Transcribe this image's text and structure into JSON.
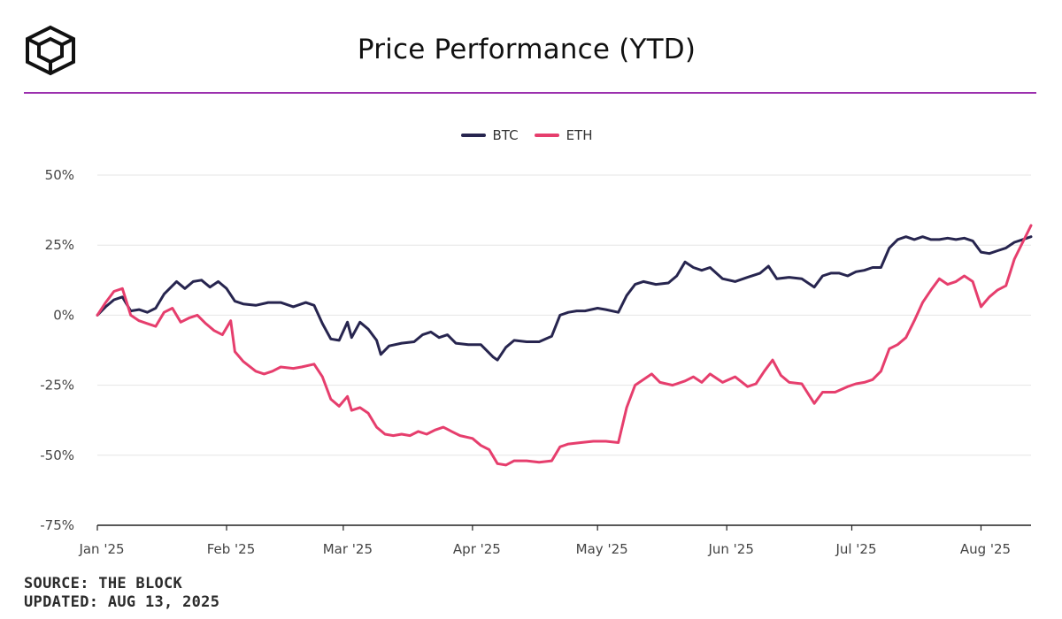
{
  "header": {
    "logo_icon": "the-block-cube-logo",
    "title": "Price Performance (YTD)",
    "accent_color": "#9b2fae"
  },
  "footer": {
    "source": "SOURCE: THE BLOCK",
    "updated": "UPDATED: AUG 13, 2025"
  },
  "chart_data": {
    "type": "line",
    "title": "Price Performance (YTD)",
    "xlabel": "",
    "ylabel": "",
    "x_ticks": [
      "Jan '25",
      "Feb '25",
      "Mar '25",
      "Apr '25",
      "May '25",
      "Jun '25",
      "Jul '25",
      "Aug '25"
    ],
    "y_ticks": [
      "50%",
      "25%",
      "0%",
      "-25%",
      "-50%",
      "-75%"
    ],
    "ylim": [
      -75,
      50
    ],
    "x_range": [
      "2025-01-01",
      "2025-08-13"
    ],
    "grid": true,
    "legend_position": "top-center",
    "series": [
      {
        "name": "BTC",
        "color": "#27254f",
        "points": [
          [
            "2025-01-01",
            0
          ],
          [
            "2025-01-03",
            3
          ],
          [
            "2025-01-05",
            5.5
          ],
          [
            "2025-01-07",
            6.5
          ],
          [
            "2025-01-09",
            1.5
          ],
          [
            "2025-01-11",
            2
          ],
          [
            "2025-01-13",
            1
          ],
          [
            "2025-01-15",
            2.5
          ],
          [
            "2025-01-17",
            7.5
          ],
          [
            "2025-01-20",
            12
          ],
          [
            "2025-01-22",
            9.5
          ],
          [
            "2025-01-24",
            12
          ],
          [
            "2025-01-26",
            12.5
          ],
          [
            "2025-01-28",
            10
          ],
          [
            "2025-01-30",
            12
          ],
          [
            "2025-02-01",
            9.5
          ],
          [
            "2025-02-03",
            5
          ],
          [
            "2025-02-05",
            4
          ],
          [
            "2025-02-08",
            3.5
          ],
          [
            "2025-02-11",
            4.5
          ],
          [
            "2025-02-14",
            4.5
          ],
          [
            "2025-02-17",
            3
          ],
          [
            "2025-02-20",
            4.5
          ],
          [
            "2025-02-22",
            3.5
          ],
          [
            "2025-02-24",
            -3
          ],
          [
            "2025-02-26",
            -8.5
          ],
          [
            "2025-02-28",
            -9
          ],
          [
            "2025-03-02",
            -2.5
          ],
          [
            "2025-03-03",
            -8
          ],
          [
            "2025-03-05",
            -2.5
          ],
          [
            "2025-03-07",
            -5
          ],
          [
            "2025-03-09",
            -9
          ],
          [
            "2025-03-10",
            -14
          ],
          [
            "2025-03-12",
            -11
          ],
          [
            "2025-03-15",
            -10
          ],
          [
            "2025-03-18",
            -9.5
          ],
          [
            "2025-03-20",
            -7
          ],
          [
            "2025-03-22",
            -6
          ],
          [
            "2025-03-24",
            -8
          ],
          [
            "2025-03-26",
            -7
          ],
          [
            "2025-03-28",
            -10
          ],
          [
            "2025-03-31",
            -10.5
          ],
          [
            "2025-04-03",
            -10.5
          ],
          [
            "2025-04-06",
            -15
          ],
          [
            "2025-04-07",
            -16
          ],
          [
            "2025-04-09",
            -11.5
          ],
          [
            "2025-04-11",
            -9
          ],
          [
            "2025-04-14",
            -9.5
          ],
          [
            "2025-04-17",
            -9.5
          ],
          [
            "2025-04-20",
            -7.5
          ],
          [
            "2025-04-22",
            0
          ],
          [
            "2025-04-24",
            1
          ],
          [
            "2025-04-26",
            1.5
          ],
          [
            "2025-04-28",
            1.5
          ],
          [
            "2025-05-01",
            2.5
          ],
          [
            "2025-05-03",
            2
          ],
          [
            "2025-05-06",
            1
          ],
          [
            "2025-05-08",
            7
          ],
          [
            "2025-05-10",
            11
          ],
          [
            "2025-05-12",
            12
          ],
          [
            "2025-05-15",
            11
          ],
          [
            "2025-05-18",
            11.5
          ],
          [
            "2025-05-20",
            14
          ],
          [
            "2025-05-22",
            19
          ],
          [
            "2025-05-24",
            17
          ],
          [
            "2025-05-26",
            16
          ],
          [
            "2025-05-28",
            17
          ],
          [
            "2025-05-31",
            13
          ],
          [
            "2025-06-03",
            12
          ],
          [
            "2025-06-06",
            13.5
          ],
          [
            "2025-06-09",
            15
          ],
          [
            "2025-06-11",
            17.5
          ],
          [
            "2025-06-13",
            13
          ],
          [
            "2025-06-16",
            13.5
          ],
          [
            "2025-06-19",
            13
          ],
          [
            "2025-06-22",
            10
          ],
          [
            "2025-06-24",
            14
          ],
          [
            "2025-06-26",
            15
          ],
          [
            "2025-06-28",
            15
          ],
          [
            "2025-06-30",
            14
          ],
          [
            "2025-07-02",
            15.5
          ],
          [
            "2025-07-04",
            16
          ],
          [
            "2025-07-06",
            17
          ],
          [
            "2025-07-08",
            17
          ],
          [
            "2025-07-10",
            24
          ],
          [
            "2025-07-12",
            27
          ],
          [
            "2025-07-14",
            28
          ],
          [
            "2025-07-16",
            27
          ],
          [
            "2025-07-18",
            28
          ],
          [
            "2025-07-20",
            27
          ],
          [
            "2025-07-22",
            27
          ],
          [
            "2025-07-24",
            27.5
          ],
          [
            "2025-07-26",
            27
          ],
          [
            "2025-07-28",
            27.5
          ],
          [
            "2025-07-30",
            26.5
          ],
          [
            "2025-08-01",
            22.5
          ],
          [
            "2025-08-03",
            22
          ],
          [
            "2025-08-05",
            23
          ],
          [
            "2025-08-07",
            24
          ],
          [
            "2025-08-09",
            26
          ],
          [
            "2025-08-11",
            27
          ],
          [
            "2025-08-13",
            28
          ]
        ]
      },
      {
        "name": "ETH",
        "color": "#e63e6d",
        "points": [
          [
            "2025-01-01",
            0
          ],
          [
            "2025-01-03",
            4.5
          ],
          [
            "2025-01-05",
            8.5
          ],
          [
            "2025-01-07",
            9.5
          ],
          [
            "2025-01-09",
            0
          ],
          [
            "2025-01-11",
            -2
          ],
          [
            "2025-01-13",
            -3
          ],
          [
            "2025-01-15",
            -4
          ],
          [
            "2025-01-17",
            1
          ],
          [
            "2025-01-19",
            2.5
          ],
          [
            "2025-01-21",
            -2.5
          ],
          [
            "2025-01-23",
            -1
          ],
          [
            "2025-01-25",
            0
          ],
          [
            "2025-01-27",
            -3
          ],
          [
            "2025-01-29",
            -5.5
          ],
          [
            "2025-01-31",
            -7
          ],
          [
            "2025-02-02",
            -2
          ],
          [
            "2025-02-03",
            -13
          ],
          [
            "2025-02-05",
            -16.5
          ],
          [
            "2025-02-08",
            -20
          ],
          [
            "2025-02-10",
            -21
          ],
          [
            "2025-02-12",
            -20
          ],
          [
            "2025-02-14",
            -18.5
          ],
          [
            "2025-02-17",
            -19
          ],
          [
            "2025-02-19",
            -18.5
          ],
          [
            "2025-02-22",
            -17.5
          ],
          [
            "2025-02-24",
            -22
          ],
          [
            "2025-02-26",
            -30
          ],
          [
            "2025-02-28",
            -32.5
          ],
          [
            "2025-03-02",
            -29
          ],
          [
            "2025-03-03",
            -34
          ],
          [
            "2025-03-05",
            -33
          ],
          [
            "2025-03-07",
            -35
          ],
          [
            "2025-03-09",
            -40
          ],
          [
            "2025-03-11",
            -42.5
          ],
          [
            "2025-03-13",
            -43
          ],
          [
            "2025-03-15",
            -42.5
          ],
          [
            "2025-03-17",
            -43
          ],
          [
            "2025-03-19",
            -41.5
          ],
          [
            "2025-03-21",
            -42.5
          ],
          [
            "2025-03-23",
            -41
          ],
          [
            "2025-03-25",
            -40
          ],
          [
            "2025-03-27",
            -41.5
          ],
          [
            "2025-03-29",
            -43
          ],
          [
            "2025-04-01",
            -44
          ],
          [
            "2025-04-03",
            -46.5
          ],
          [
            "2025-04-05",
            -48
          ],
          [
            "2025-04-07",
            -53
          ],
          [
            "2025-04-09",
            -53.5
          ],
          [
            "2025-04-11",
            -52
          ],
          [
            "2025-04-14",
            -52
          ],
          [
            "2025-04-17",
            -52.5
          ],
          [
            "2025-04-20",
            -52
          ],
          [
            "2025-04-22",
            -47
          ],
          [
            "2025-04-24",
            -46
          ],
          [
            "2025-04-27",
            -45.5
          ],
          [
            "2025-04-30",
            -45
          ],
          [
            "2025-05-03",
            -45
          ],
          [
            "2025-05-06",
            -45.5
          ],
          [
            "2025-05-08",
            -33
          ],
          [
            "2025-05-10",
            -25
          ],
          [
            "2025-05-12",
            -23
          ],
          [
            "2025-05-14",
            -21
          ],
          [
            "2025-05-16",
            -24
          ],
          [
            "2025-05-19",
            -25
          ],
          [
            "2025-05-22",
            -23.5
          ],
          [
            "2025-05-24",
            -22
          ],
          [
            "2025-05-26",
            -24
          ],
          [
            "2025-05-28",
            -21
          ],
          [
            "2025-05-31",
            -24
          ],
          [
            "2025-06-03",
            -22
          ],
          [
            "2025-06-06",
            -25.5
          ],
          [
            "2025-06-08",
            -24.5
          ],
          [
            "2025-06-10",
            -20
          ],
          [
            "2025-06-12",
            -16
          ],
          [
            "2025-06-14",
            -21.5
          ],
          [
            "2025-06-16",
            -24
          ],
          [
            "2025-06-19",
            -24.5
          ],
          [
            "2025-06-22",
            -31.5
          ],
          [
            "2025-06-24",
            -27.5
          ],
          [
            "2025-06-27",
            -27.5
          ],
          [
            "2025-06-30",
            -25.5
          ],
          [
            "2025-07-02",
            -24.5
          ],
          [
            "2025-07-04",
            -24
          ],
          [
            "2025-07-06",
            -23
          ],
          [
            "2025-07-08",
            -20
          ],
          [
            "2025-07-10",
            -12
          ],
          [
            "2025-07-12",
            -10.5
          ],
          [
            "2025-07-14",
            -8
          ],
          [
            "2025-07-16",
            -2
          ],
          [
            "2025-07-18",
            4.5
          ],
          [
            "2025-07-20",
            9
          ],
          [
            "2025-07-22",
            13
          ],
          [
            "2025-07-24",
            11
          ],
          [
            "2025-07-26",
            12
          ],
          [
            "2025-07-28",
            14
          ],
          [
            "2025-07-30",
            12
          ],
          [
            "2025-08-01",
            3
          ],
          [
            "2025-08-03",
            6.5
          ],
          [
            "2025-08-05",
            9
          ],
          [
            "2025-08-07",
            10.5
          ],
          [
            "2025-08-09",
            20
          ],
          [
            "2025-08-11",
            26
          ],
          [
            "2025-08-13",
            32
          ]
        ]
      }
    ]
  }
}
